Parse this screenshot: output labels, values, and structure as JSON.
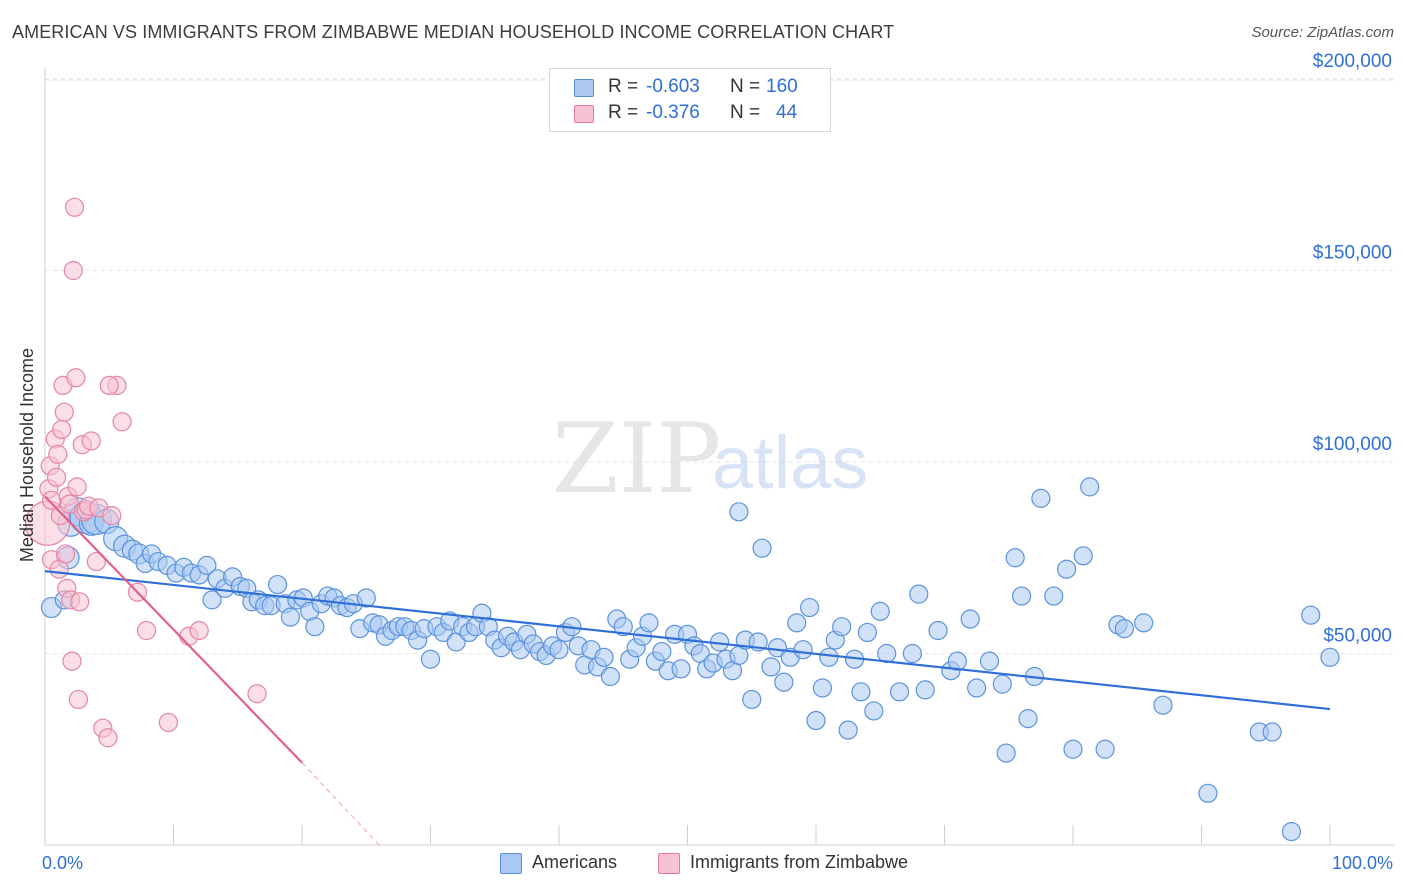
{
  "title": "AMERICAN VS IMMIGRANTS FROM ZIMBABWE MEDIAN HOUSEHOLD INCOME CORRELATION CHART",
  "source": "Source: ZipAtlas.com",
  "watermark": {
    "zip": "ZIP",
    "atlas": "atlas"
  },
  "legend_top": {
    "rows": [
      {
        "r_label": "R =",
        "r_value": "-0.603",
        "n_label": "N =",
        "n_value": "160",
        "color": "#aac8f2",
        "border": "#5a8fd8"
      },
      {
        "r_label": "R =",
        "r_value": "-0.376",
        "n_label": "N =",
        "n_value": "44",
        "color": "#f8c2d2",
        "border": "#e27aa0"
      }
    ]
  },
  "legend_bottom": [
    {
      "label": "Americans",
      "color": "#aac8f2",
      "border": "#5a8fd8"
    },
    {
      "label": "Immigrants from Zimbabwe",
      "color": "#f8c2d2",
      "border": "#e27aa0"
    }
  ],
  "chart_data": {
    "type": "scatter",
    "title": "AMERICAN VS IMMIGRANTS FROM ZIMBABWE MEDIAN HOUSEHOLD INCOME CORRELATION CHART",
    "xlabel": "",
    "ylabel": "Median Household Income",
    "xlim": [
      0,
      100
    ],
    "ylim": [
      0,
      205000
    ],
    "x_tick_labels": [
      "0.0%",
      "100.0%"
    ],
    "y_ticks": [
      50000,
      100000,
      150000,
      200000
    ],
    "y_tick_labels": [
      "$50,000",
      "$100,000",
      "$150,000",
      "$200,000"
    ],
    "grid": true,
    "series": [
      {
        "name": "Americans",
        "color": "#5b93dc",
        "fill": "#aac8f2",
        "trend": {
          "x0": 0,
          "y0": 71500,
          "x1": 100,
          "y1": 35500,
          "color": "#2f6fd6"
        },
        "points": [
          [
            0.5,
            62000,
            10
          ],
          [
            1.5,
            64000,
            9
          ],
          [
            1.8,
            75000,
            11
          ],
          [
            2.0,
            84000,
            13
          ],
          [
            2.6,
            87000,
            14
          ],
          [
            3.2,
            85500,
            16
          ],
          [
            3.6,
            84000,
            12
          ],
          [
            4.0,
            85000,
            15
          ],
          [
            4.8,
            84500,
            12
          ],
          [
            5.5,
            80000,
            12
          ],
          [
            6.2,
            78000,
            11
          ],
          [
            6.8,
            77000,
            10
          ],
          [
            7.3,
            76000,
            10
          ],
          [
            7.8,
            73500,
            9
          ],
          [
            8.3,
            76000,
            9
          ],
          [
            8.8,
            74000,
            9
          ],
          [
            9.5,
            73000,
            9
          ],
          [
            10.2,
            71000,
            9
          ],
          [
            10.8,
            72500,
            9
          ],
          [
            11.4,
            71000,
            9
          ],
          [
            12.0,
            70500,
            9
          ],
          [
            12.6,
            73000,
            9
          ],
          [
            13.0,
            64000,
            9
          ],
          [
            13.4,
            69500,
            9
          ],
          [
            14.0,
            67000,
            9
          ],
          [
            14.6,
            70000,
            9
          ],
          [
            15.2,
            67500,
            9
          ],
          [
            15.7,
            67000,
            9
          ],
          [
            16.1,
            63500,
            9
          ],
          [
            16.6,
            64000,
            9
          ],
          [
            17.1,
            62500,
            9
          ],
          [
            17.6,
            62500,
            9
          ],
          [
            18.1,
            68000,
            9
          ],
          [
            18.7,
            63000,
            9
          ],
          [
            19.1,
            59500,
            9
          ],
          [
            19.6,
            64000,
            9
          ],
          [
            20.1,
            64500,
            9
          ],
          [
            20.6,
            61000,
            9
          ],
          [
            21.0,
            57000,
            9
          ],
          [
            21.5,
            63000,
            9
          ],
          [
            22.0,
            65000,
            9
          ],
          [
            22.5,
            64500,
            9
          ],
          [
            23.0,
            62500,
            9
          ],
          [
            23.5,
            62000,
            9
          ],
          [
            24.0,
            63000,
            9
          ],
          [
            24.5,
            56500,
            9
          ],
          [
            25.0,
            64500,
            9
          ],
          [
            25.5,
            58000,
            9
          ],
          [
            26.0,
            57500,
            9
          ],
          [
            26.5,
            54500,
            9
          ],
          [
            27.0,
            56000,
            9
          ],
          [
            27.5,
            57000,
            9
          ],
          [
            28.0,
            57000,
            9
          ],
          [
            28.5,
            56000,
            9
          ],
          [
            29.0,
            53500,
            9
          ],
          [
            29.5,
            56500,
            9
          ],
          [
            30.0,
            48500,
            9
          ],
          [
            30.5,
            57000,
            9
          ],
          [
            31.0,
            55500,
            9
          ],
          [
            31.5,
            58500,
            9
          ],
          [
            32.0,
            53000,
            9
          ],
          [
            32.5,
            57000,
            9
          ],
          [
            33.0,
            55500,
            9
          ],
          [
            33.5,
            57000,
            9
          ],
          [
            34.0,
            60500,
            9
          ],
          [
            34.5,
            57000,
            9
          ],
          [
            35.0,
            53500,
            9
          ],
          [
            35.5,
            51500,
            9
          ],
          [
            36.0,
            54500,
            9
          ],
          [
            36.5,
            53000,
            9
          ],
          [
            37.0,
            51000,
            9
          ],
          [
            37.5,
            55000,
            9
          ],
          [
            38.0,
            52500,
            9
          ],
          [
            38.5,
            50500,
            9
          ],
          [
            39.0,
            49500,
            9
          ],
          [
            39.5,
            52000,
            9
          ],
          [
            40.0,
            51000,
            9
          ],
          [
            40.5,
            55500,
            9
          ],
          [
            41.0,
            57000,
            9
          ],
          [
            41.5,
            52000,
            9
          ],
          [
            42.0,
            47000,
            9
          ],
          [
            42.5,
            51000,
            9
          ],
          [
            43.0,
            46500,
            9
          ],
          [
            43.5,
            49000,
            9
          ],
          [
            44.0,
            44000,
            9
          ],
          [
            44.5,
            59000,
            9
          ],
          [
            45.0,
            57000,
            9
          ],
          [
            45.5,
            48500,
            9
          ],
          [
            46.0,
            51500,
            9
          ],
          [
            46.5,
            54500,
            9
          ],
          [
            47.0,
            58000,
            9
          ],
          [
            47.5,
            48000,
            9
          ],
          [
            48.0,
            50500,
            9
          ],
          [
            48.5,
            45500,
            9
          ],
          [
            49.0,
            55000,
            9
          ],
          [
            49.5,
            46000,
            9
          ],
          [
            50.0,
            55000,
            9
          ],
          [
            50.5,
            52000,
            9
          ],
          [
            51.0,
            50000,
            9
          ],
          [
            51.5,
            46000,
            9
          ],
          [
            52.0,
            47500,
            9
          ],
          [
            52.5,
            53000,
            9
          ],
          [
            53.0,
            48500,
            9
          ],
          [
            53.5,
            45500,
            9
          ],
          [
            54.0,
            49500,
            9
          ],
          [
            54.5,
            53500,
            9
          ],
          [
            55.0,
            38000,
            9
          ],
          [
            55.5,
            53000,
            9
          ],
          [
            54.0,
            87000,
            9
          ],
          [
            55.8,
            77500,
            9
          ],
          [
            56.5,
            46500,
            9
          ],
          [
            57.0,
            51500,
            9
          ],
          [
            57.5,
            42500,
            9
          ],
          [
            58.0,
            49000,
            9
          ],
          [
            58.5,
            58000,
            9
          ],
          [
            59.0,
            51000,
            9
          ],
          [
            59.5,
            62000,
            9
          ],
          [
            60.0,
            32500,
            9
          ],
          [
            60.5,
            41000,
            9
          ],
          [
            61.0,
            49000,
            9
          ],
          [
            61.5,
            53500,
            9
          ],
          [
            62.0,
            57000,
            9
          ],
          [
            62.5,
            30000,
            9
          ],
          [
            63.0,
            48500,
            9
          ],
          [
            63.5,
            40000,
            9
          ],
          [
            64.0,
            55500,
            9
          ],
          [
            64.5,
            35000,
            9
          ],
          [
            65.0,
            61000,
            9
          ],
          [
            65.5,
            50000,
            9
          ],
          [
            66.5,
            40000,
            9
          ],
          [
            67.5,
            50000,
            9
          ],
          [
            68.0,
            65500,
            9
          ],
          [
            68.5,
            40500,
            9
          ],
          [
            69.5,
            56000,
            9
          ],
          [
            70.5,
            45500,
            9
          ],
          [
            71.0,
            48000,
            9
          ],
          [
            72.0,
            59000,
            9
          ],
          [
            72.5,
            41000,
            9
          ],
          [
            73.5,
            48000,
            9
          ],
          [
            74.5,
            42000,
            9
          ],
          [
            74.8,
            24000,
            9
          ],
          [
            75.5,
            75000,
            9
          ],
          [
            76.0,
            65000,
            9
          ],
          [
            76.5,
            33000,
            9
          ],
          [
            77.0,
            44000,
            9
          ],
          [
            77.5,
            90500,
            9
          ],
          [
            78.5,
            65000,
            9
          ],
          [
            79.5,
            72000,
            9
          ],
          [
            80.0,
            25000,
            9
          ],
          [
            80.8,
            75500,
            9
          ],
          [
            81.3,
            93500,
            9
          ],
          [
            82.5,
            25000,
            9
          ],
          [
            83.5,
            57500,
            9
          ],
          [
            84.0,
            56500,
            9
          ],
          [
            85.5,
            58000,
            9
          ],
          [
            87.0,
            36500,
            9
          ],
          [
            90.5,
            13500,
            9
          ],
          [
            94.5,
            29500,
            9
          ],
          [
            95.5,
            29500,
            9
          ],
          [
            97.0,
            3500,
            9
          ],
          [
            98.5,
            60000,
            9
          ],
          [
            100.0,
            49000,
            9
          ]
        ]
      },
      {
        "name": "Immigrants from Zimbabwe",
        "color": "#e585a6",
        "fill": "#f8c2d2",
        "trend": {
          "x0": 0,
          "y0": 91000,
          "x1": 20,
          "y1": 21500,
          "color": "#e0608e"
        },
        "trend_dashed": {
          "x0": 20,
          "y0": 21500,
          "x1": 26,
          "y1": 0
        },
        "points": [
          [
            0.2,
            84000,
            22
          ],
          [
            0.3,
            93000,
            9
          ],
          [
            0.4,
            99000,
            9
          ],
          [
            0.5,
            90000,
            9
          ],
          [
            0.5,
            74500,
            9
          ],
          [
            0.8,
            106000,
            9
          ],
          [
            0.9,
            96000,
            9
          ],
          [
            1.0,
            102000,
            9
          ],
          [
            1.1,
            72000,
            9
          ],
          [
            1.2,
            86000,
            9
          ],
          [
            1.3,
            108500,
            9
          ],
          [
            1.4,
            120000,
            9
          ],
          [
            1.5,
            113000,
            9
          ],
          [
            1.6,
            76000,
            9
          ],
          [
            1.7,
            67000,
            9
          ],
          [
            1.8,
            91000,
            9
          ],
          [
            1.9,
            89000,
            9
          ],
          [
            2.0,
            64000,
            9
          ],
          [
            2.1,
            48000,
            9
          ],
          [
            2.2,
            150000,
            9
          ],
          [
            2.3,
            166500,
            9
          ],
          [
            2.4,
            122000,
            9
          ],
          [
            2.5,
            93500,
            9
          ],
          [
            2.6,
            38000,
            9
          ],
          [
            2.7,
            63500,
            9
          ],
          [
            2.9,
            104500,
            9
          ],
          [
            3.0,
            87000,
            9
          ],
          [
            3.2,
            87500,
            9
          ],
          [
            3.4,
            88500,
            9
          ],
          [
            3.6,
            105500,
            9
          ],
          [
            4.0,
            74000,
            9
          ],
          [
            4.2,
            88000,
            9
          ],
          [
            4.5,
            30500,
            9
          ],
          [
            4.9,
            28000,
            9
          ],
          [
            5.2,
            86000,
            9
          ],
          [
            5.6,
            120000,
            9
          ],
          [
            6.0,
            110500,
            9
          ],
          [
            7.2,
            66000,
            9
          ],
          [
            7.9,
            56000,
            9
          ],
          [
            9.6,
            32000,
            9
          ],
          [
            11.2,
            54500,
            9
          ],
          [
            12.0,
            56000,
            9
          ],
          [
            16.5,
            39500,
            9
          ],
          [
            5.0,
            120000,
            9
          ]
        ]
      }
    ]
  }
}
